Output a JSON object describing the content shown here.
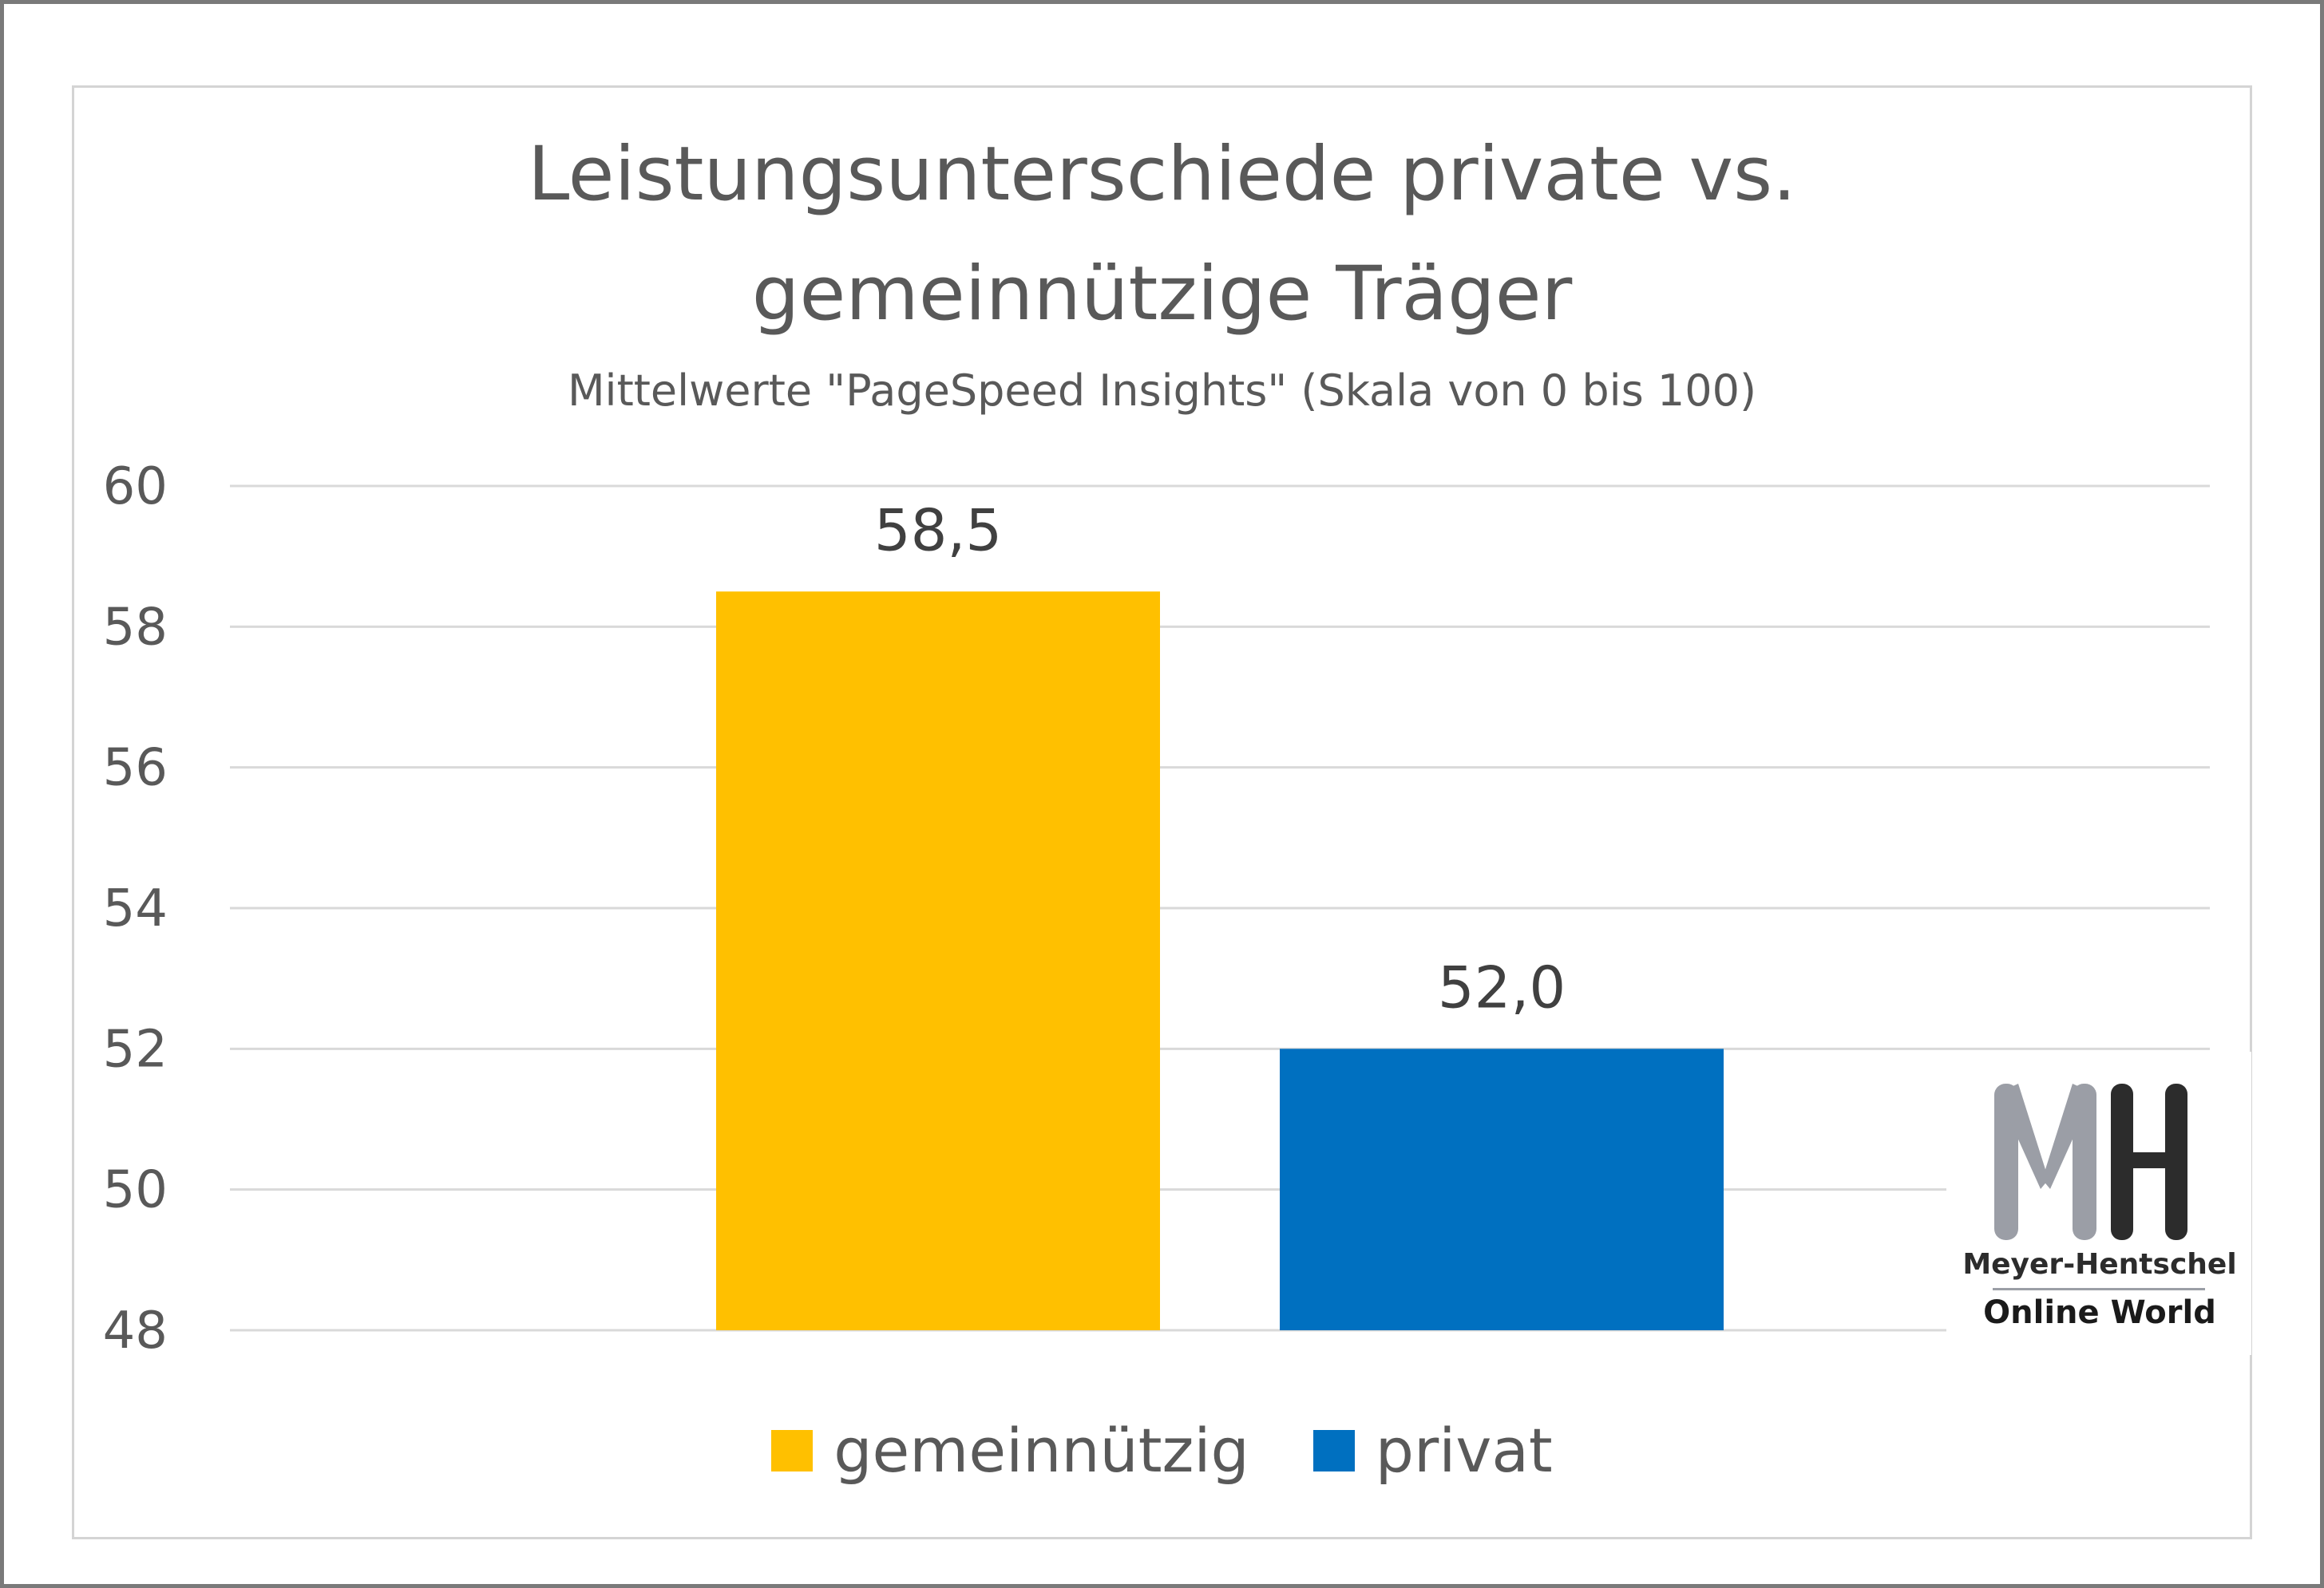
{
  "colors": {
    "gemeinnuetzig": "#FFC000",
    "privat": "#0070C0",
    "gridline": "#D9D9D9",
    "text": "#595959",
    "datalabel": "#404040",
    "logo_gray": "#9B9EA6",
    "logo_dark": "#2C2C2C"
  },
  "logo": {
    "icon": "mh-logo-icon",
    "line1": "Meyer-Hentschel",
    "line2": "Online World"
  },
  "chart_data": {
    "type": "bar",
    "title_line1": "Leistungsunterschiede private vs.",
    "title_line2": "gemeinnützige Träger",
    "subtitle": "Mittelwerte \"PageSpeed Insights\" (Skala von 0 bis 100)",
    "xlabel": "",
    "ylabel": "",
    "ylim": [
      48,
      60
    ],
    "yticks": [
      60,
      58,
      56,
      54,
      52,
      50,
      48
    ],
    "grid": true,
    "legend_position": "bottom",
    "series": [
      {
        "name": "gemeinnützig",
        "value": 58.5,
        "label": "58,5",
        "color": "#FFC000"
      },
      {
        "name": "privat",
        "value": 52.0,
        "label": "52,0",
        "color": "#0070C0"
      }
    ]
  }
}
